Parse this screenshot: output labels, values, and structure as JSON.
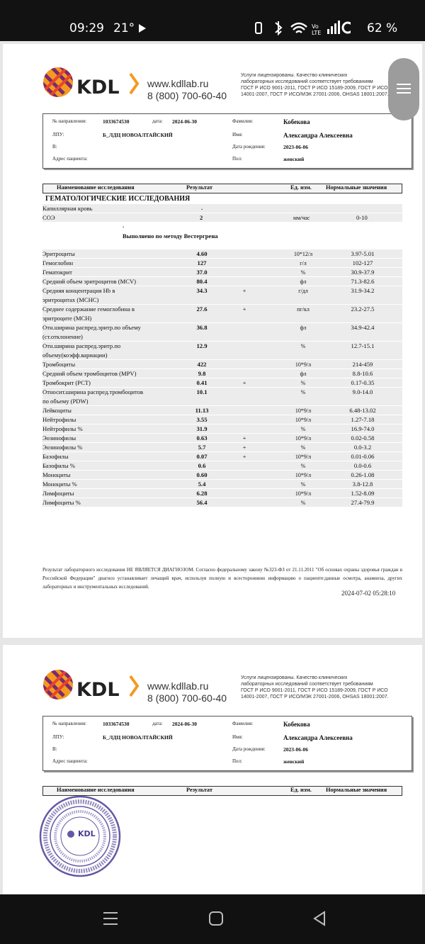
{
  "status": {
    "time": "09:29",
    "temperature": "21°",
    "battery": "62 %"
  },
  "header": {
    "brand": "KDL",
    "site": "www.kdllab.ru",
    "phone": "8 (800) 700-60-40",
    "license": [
      "Услуги лицензированы. Качество клинических",
      "лабораторных исследований соответствует требованиям",
      "ГОСТ Р ИСО 9001-2011, ГОСТ Р ИСО 15189-2009, ГОСТ Р ИСО",
      "14001-2007, ГОСТ Р ИСО/МЭК 27001-2006, OHSAS 18001:2007."
    ]
  },
  "patient": {
    "referral_label": "№ направления:",
    "referral": "1033674530",
    "date_label": "дата:",
    "date": "2024-06-30",
    "surname_label": "Фамилия:",
    "surname": "Кобекова",
    "lpu_label": "ЛПУ:",
    "lpu": "Б_ЛДЦ НОВОАЛТАЙСКИЙ",
    "name_label": "Имя:",
    "name": "Александра Алексеевна",
    "v_label": "В:",
    "dob_label": "Дата рождения:",
    "dob": "2023-06-06",
    "address_label": "Адрес пациента:",
    "sex_label": "Пол:",
    "sex": "женский"
  },
  "table": {
    "columns": [
      "Наименование исследования",
      "Результат",
      "Ед. изм.",
      "Нормальные значения"
    ],
    "section": "ГЕМАТОЛОГИЧЕСКИЕ ИССЛЕДОВАНИЯ",
    "material": "Капиллярная кровь",
    "material_result": ".",
    "esr": {
      "name": "СОЭ",
      "result": "2",
      "unit": "мм/час",
      "norm": "0-10"
    },
    "esr_mark": ".",
    "method": "Выполнено по методу Вестергрена",
    "rows": [
      {
        "name": [
          "Эритроциты"
        ],
        "result": "4.60",
        "unit": "10*12/л",
        "norm": "3.97-5.01"
      },
      {
        "name": [
          "Гемоглобин"
        ],
        "result": "127",
        "unit": "г/л",
        "norm": "102-127"
      },
      {
        "name": [
          "Гематокрит"
        ],
        "result": "37.0",
        "unit": "%",
        "norm": "30.9-37.9"
      },
      {
        "name": [
          "Средний объем эритроцитов (MCV)"
        ],
        "result": "80.4",
        "unit": "фл",
        "norm": "71.3-82.6"
      },
      {
        "name": [
          "Средняя концентрация Hb в",
          "эритроцитах (MCHC)"
        ],
        "result": "34.3",
        "flag": "+",
        "unit": "г/дл",
        "norm": "31.9-34.2"
      },
      {
        "name": [
          "Среднее содержание гемоглобина в",
          "эритроците (MCH)"
        ],
        "result": "27.6",
        "flag": "+",
        "unit": "пг/кл",
        "norm": "23.2-27.5"
      },
      {
        "name": [
          "Отн.ширина распред.эритр.по объему",
          "(ст.отклонение)"
        ],
        "result": "36.8",
        "unit": "фл",
        "norm": "34.9-42.4"
      },
      {
        "name": [
          "Отн.ширина распред.эритр.по",
          "объему(коэфф.вариации)"
        ],
        "result": "12.9",
        "unit": "%",
        "norm": "12.7-15.1"
      },
      {
        "name": [
          "Тромбоциты"
        ],
        "result": "422",
        "unit": "10*9/л",
        "norm": "214-459"
      },
      {
        "name": [
          "Средний объем тромбоцитов (MPV)"
        ],
        "result": "9.8",
        "unit": "фл",
        "norm": "8.8-10.6"
      },
      {
        "name": [
          "Тромбокрит (PCT)"
        ],
        "result": "0.41",
        "flag": "+",
        "unit": "%",
        "norm": "0.17-0.35"
      },
      {
        "name": [
          "Относит.ширина распред.тромбоцитов",
          "по объему (PDW)"
        ],
        "result": "10.1",
        "unit": "%",
        "norm": "9.0-14.0"
      },
      {
        "name": [
          "Лейкоциты"
        ],
        "result": "11.13",
        "unit": "10*9/л",
        "norm": "6.48-13.02"
      },
      {
        "name": [
          "Нейтрофилы"
        ],
        "result": "3.55",
        "unit": "10*9/л",
        "norm": "1.27-7.18"
      },
      {
        "name": [
          "Нейтрофилы %"
        ],
        "result": "31.9",
        "unit": "%",
        "norm": "16.9-74.0"
      },
      {
        "name": [
          "Эозинофилы"
        ],
        "result": "0.63",
        "flag": "+",
        "unit": "10*9/л",
        "norm": "0.02-0.58"
      },
      {
        "name": [
          "Эозинофилы %"
        ],
        "result": "5.7",
        "flag": "+",
        "unit": "%",
        "norm": "0.0-3.2"
      },
      {
        "name": [
          "Базофилы"
        ],
        "result": "0.07",
        "flag": "+",
        "unit": "10*9/л",
        "norm": "0.01-0.06"
      },
      {
        "name": [
          "Базофилы %"
        ],
        "result": "0.6",
        "unit": "%",
        "norm": "0.0-0.6"
      },
      {
        "name": [
          "Моноциты"
        ],
        "result": "0.60",
        "unit": "10*9/л",
        "norm": "0.26-1.08"
      },
      {
        "name": [
          "Моноциты %"
        ],
        "result": "5.4",
        "unit": "%",
        "norm": "3.8-12.8"
      },
      {
        "name": [
          "Лимфоциты"
        ],
        "result": "6.28",
        "unit": "10*9/л",
        "norm": "1.52-8.09"
      },
      {
        "name": [
          "Лимфоциты %"
        ],
        "result": "56.4",
        "unit": "%",
        "norm": "27.4-79.9"
      }
    ]
  },
  "footer": {
    "disclaimer": "Результат лабораторного исследования НЕ ЯВЛЯЕТСЯ ДИАГНОЗОМ. Согласно федеральному закону №323-ФЗ от 21.11.2011 \"Об основах охраны здоровья граждан в Российской Федерации\" диагноз устанавливает лечащий врач, используя полную и всестороннюю информацию о пациенте:данные осмотра, анамнеза, других лабораторных и инструментальных исследований.",
    "timestamp": "2024-07-02 05:28:10"
  },
  "stamp": {
    "brand": "KDL"
  }
}
